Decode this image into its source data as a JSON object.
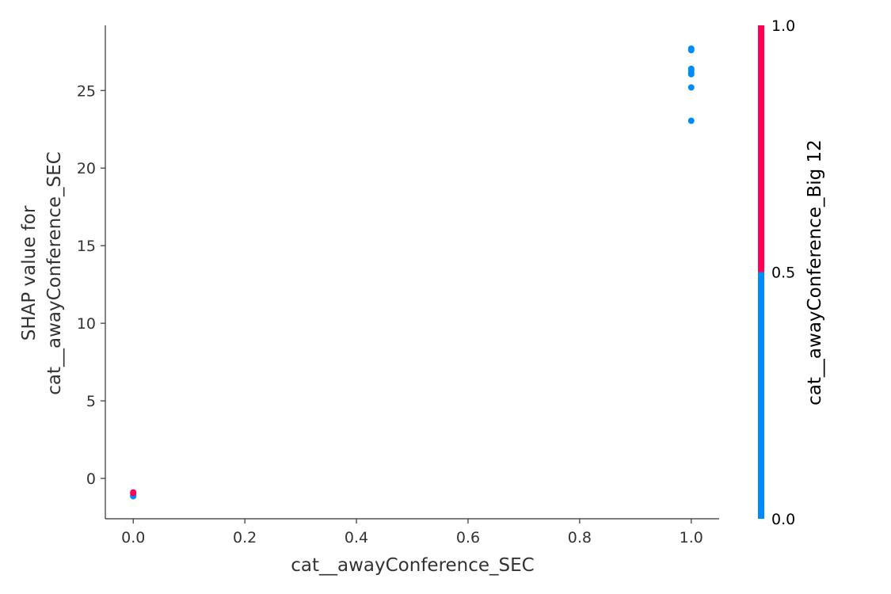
{
  "chart_data": {
    "type": "scatter",
    "title": "",
    "xlabel": "cat__awayConference_SEC",
    "ylabel_lines": [
      "SHAP value for",
      "cat__awayConference_SEC"
    ],
    "xlim": [
      -0.05,
      1.05
    ],
    "ylim": [
      -2.6,
      29.2
    ],
    "x_ticks": [
      0.0,
      0.2,
      0.4,
      0.6,
      0.8,
      1.0
    ],
    "x_tick_labels": [
      "0.0",
      "0.2",
      "0.4",
      "0.6",
      "0.8",
      "1.0"
    ],
    "y_ticks": [
      0,
      5,
      10,
      15,
      20,
      25
    ],
    "y_tick_labels": [
      "0",
      "5",
      "10",
      "15",
      "20",
      "25"
    ],
    "grid": false,
    "points": [
      {
        "x": 1.0,
        "y": 27.7,
        "c": 0
      },
      {
        "x": 1.0,
        "y": 27.6,
        "c": 0
      },
      {
        "x": 1.0,
        "y": 26.4,
        "c": 0
      },
      {
        "x": 1.0,
        "y": 26.3,
        "c": 0
      },
      {
        "x": 1.0,
        "y": 26.15,
        "c": 0
      },
      {
        "x": 1.0,
        "y": 26.05,
        "c": 0
      },
      {
        "x": 1.0,
        "y": 25.2,
        "c": 0
      },
      {
        "x": 1.0,
        "y": 23.05,
        "c": 0
      },
      {
        "x": 0.0,
        "y": -1.1,
        "c": 0
      },
      {
        "x": 0.0,
        "y": -1.15,
        "c": 0
      },
      {
        "x": 0.0,
        "y": -1.05,
        "c": 0
      },
      {
        "x": 0.0,
        "y": -0.95,
        "c": 1
      },
      {
        "x": 0.0,
        "y": -0.9,
        "c": 1
      }
    ],
    "colorbar": {
      "label": "cat__awayConference_Big 12",
      "range": [
        0.0,
        1.0
      ],
      "ticks": [
        0.0,
        0.5,
        1.0
      ],
      "tick_labels": [
        "0.0",
        "0.5",
        "1.0"
      ],
      "low_color": "#008bfb",
      "high_color": "#ff0052"
    }
  }
}
